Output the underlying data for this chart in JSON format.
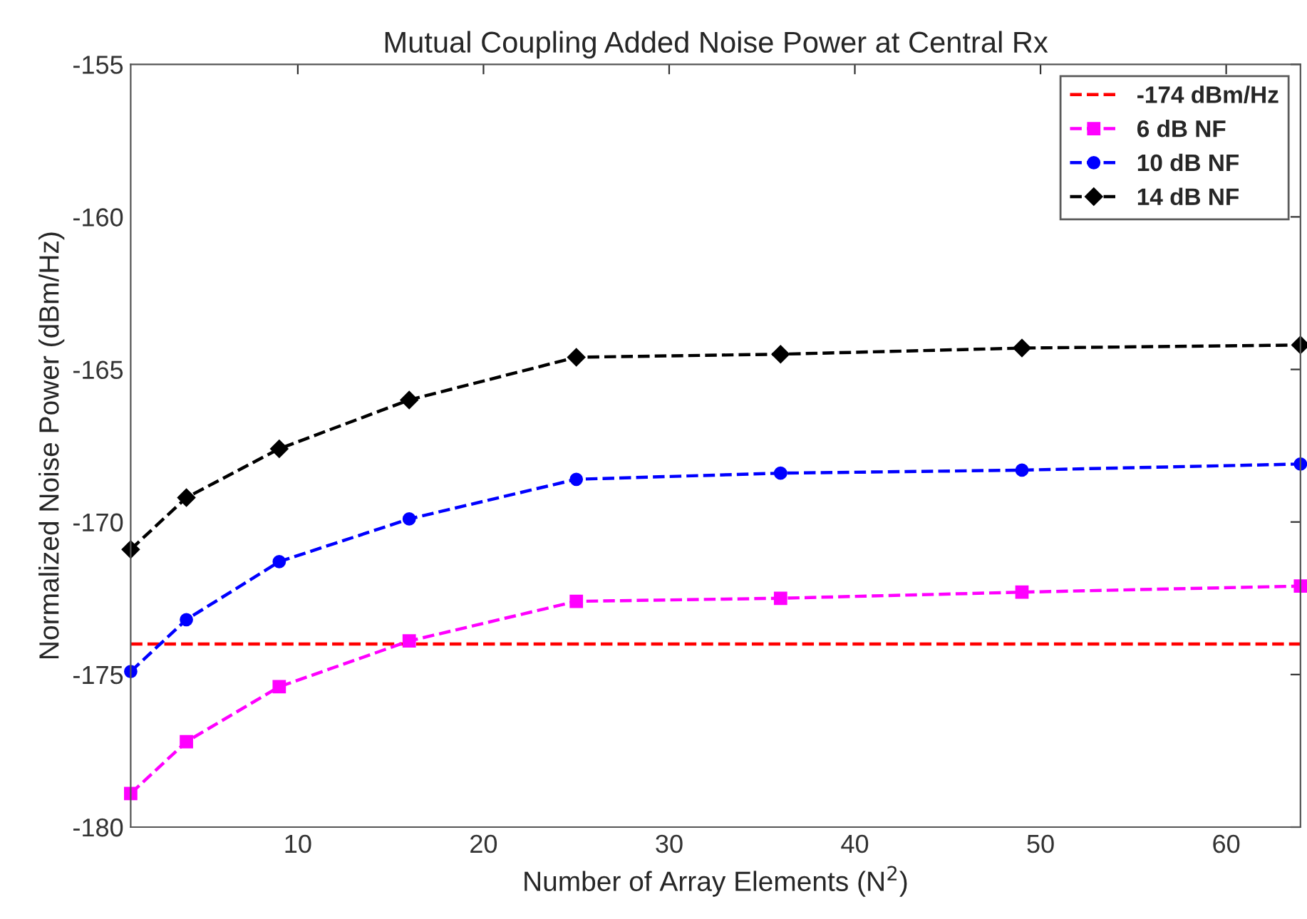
{
  "chart_data": {
    "type": "line",
    "title": "Mutual Coupling Added Noise Power at Central Rx",
    "xlabel": "Number of Array Elements (N$^{2}$)",
    "ylabel": "Normalized Noise Power (dBm/Hz)",
    "x": [
      1,
      4,
      9,
      16,
      25,
      36,
      49,
      64
    ],
    "series": [
      {
        "name": "-174 dBm/Hz",
        "color": "#ff0000",
        "values": [
          -174,
          -174,
          -174,
          -174,
          -174,
          -174,
          -174,
          -174
        ],
        "marker": "none"
      },
      {
        "name": "6 dB NF",
        "color": "#ff00ff",
        "values": [
          -178.9,
          -177.2,
          -175.4,
          -173.9,
          -172.6,
          -172.5,
          -172.3,
          -172.1
        ],
        "marker": "square"
      },
      {
        "name": "10 dB NF",
        "color": "#0000ff",
        "values": [
          -174.9,
          -173.2,
          -171.3,
          -169.9,
          -168.6,
          -168.4,
          -168.3,
          -168.1
        ],
        "marker": "circle"
      },
      {
        "name": "14 dB NF",
        "color": "#000000",
        "values": [
          -170.9,
          -169.2,
          -167.6,
          -166.0,
          -164.6,
          -164.5,
          -164.3,
          -164.2
        ],
        "marker": "diamond"
      }
    ],
    "line_style": "dashed",
    "xlim": [
      1,
      64
    ],
    "xticks": [
      10,
      20,
      30,
      40,
      50,
      60
    ],
    "ylim": [
      -180,
      -155
    ],
    "yticks": [
      -180,
      -175,
      -170,
      -165,
      -160,
      -155
    ],
    "grid": false,
    "legend": "top right"
  }
}
